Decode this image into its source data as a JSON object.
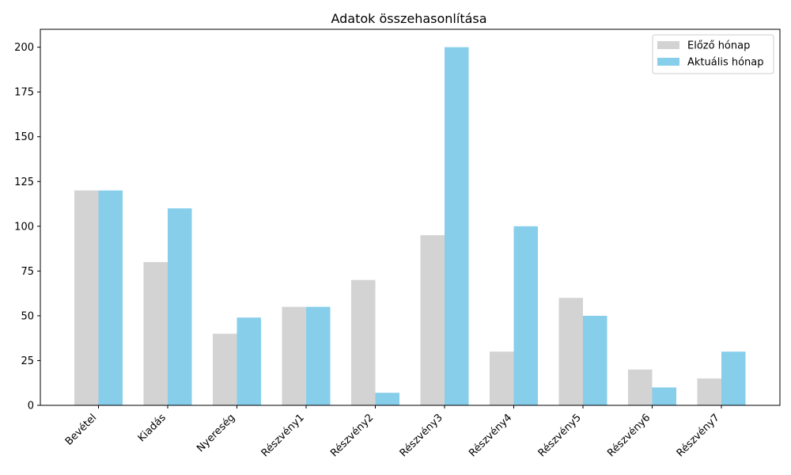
{
  "chart_data": {
    "type": "bar",
    "title": "Adatok összehasonlítása",
    "xlabel": "",
    "ylabel": "",
    "categories": [
      "Bevétel",
      "Kiadás",
      "Nyereség",
      "Részvény1",
      "Részvény2",
      "Részvény3",
      "Részvény4",
      "Részvény5",
      "Részvény6",
      "Részvény7"
    ],
    "series": [
      {
        "name": "Előző hónap",
        "color": "#d3d3d3",
        "values": [
          120,
          80,
          40,
          55,
          70,
          95,
          30,
          60,
          20,
          15
        ]
      },
      {
        "name": "Aktuális hónap",
        "color": "#87ceeb",
        "values": [
          120,
          110,
          49,
          55,
          7,
          200,
          100,
          50,
          10,
          30
        ]
      }
    ],
    "ylim": [
      0,
      210
    ],
    "yticks": [
      0,
      25,
      50,
      75,
      100,
      125,
      150,
      175,
      200
    ],
    "grid": false,
    "legend_position": "top-right"
  }
}
